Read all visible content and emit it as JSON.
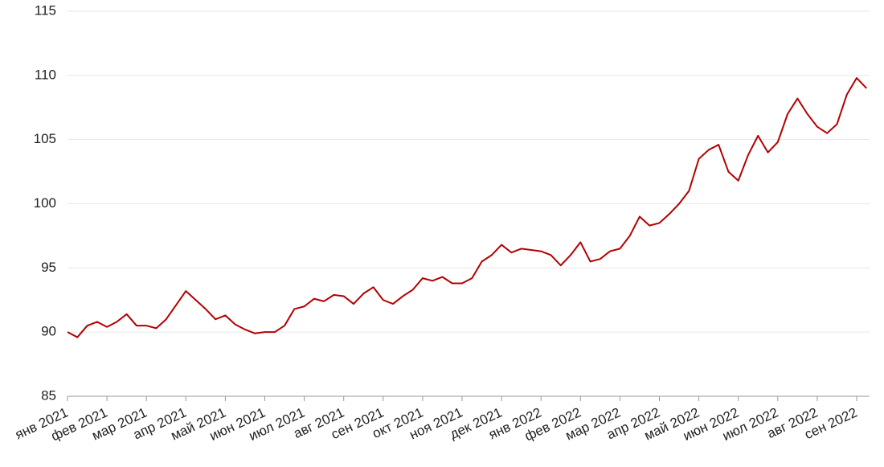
{
  "chart_data": {
    "type": "line",
    "categories": [
      "янв 2021",
      null,
      null,
      null,
      "фев 2021",
      null,
      null,
      null,
      "мар 2021",
      null,
      null,
      null,
      "апр 2021",
      null,
      null,
      null,
      "май 2021",
      null,
      null,
      null,
      "июн 2021",
      null,
      null,
      null,
      "июл 2021",
      null,
      null,
      null,
      "авг 2021",
      null,
      null,
      null,
      "сен 2021",
      null,
      null,
      null,
      "окт 2021",
      null,
      null,
      null,
      "ноя 2021",
      null,
      null,
      null,
      "дек 2021",
      null,
      null,
      null,
      "янв 2022",
      null,
      null,
      null,
      "фев 2022",
      null,
      null,
      null,
      "мар 2022",
      null,
      null,
      null,
      "апр 2022",
      null,
      null,
      null,
      "май 2022",
      null,
      null,
      null,
      "июн 2022",
      null,
      null,
      null,
      "июл 2022",
      null,
      null,
      null,
      "авг 2022",
      null,
      null,
      null,
      "сен 2022",
      null
    ],
    "series": [
      {
        "color": "#b30000",
        "values": [
          90.0,
          89.6,
          90.5,
          90.8,
          90.4,
          90.8,
          91.4,
          90.5,
          90.5,
          90.3,
          91.0,
          92.1,
          93.2,
          92.5,
          91.8,
          91.0,
          91.3,
          90.6,
          90.2,
          89.9,
          90.0,
          90.0,
          90.5,
          91.8,
          92.0,
          92.6,
          92.4,
          92.9,
          92.8,
          92.2,
          93.0,
          93.5,
          92.5,
          92.2,
          92.8,
          93.3,
          94.2,
          94.0,
          94.3,
          93.8,
          93.8,
          94.2,
          95.5,
          96.0,
          96.8,
          96.2,
          96.5,
          96.4,
          96.3,
          96.0,
          95.2,
          96.0,
          97.0,
          95.5,
          95.7,
          96.3,
          96.5,
          97.5,
          99.0,
          98.3,
          98.5,
          99.2,
          100.0,
          101.0,
          103.5,
          104.2,
          104.6,
          102.5,
          101.8,
          103.8,
          105.3,
          104.0,
          104.8,
          107.0,
          108.2,
          107.0,
          106.0,
          105.5,
          106.2,
          108.5,
          109.8,
          109.0
        ]
      }
    ],
    "ylim": [
      85,
      115
    ],
    "yticks": [
      85,
      90,
      95,
      100,
      105,
      110,
      115
    ],
    "grid": true
  }
}
